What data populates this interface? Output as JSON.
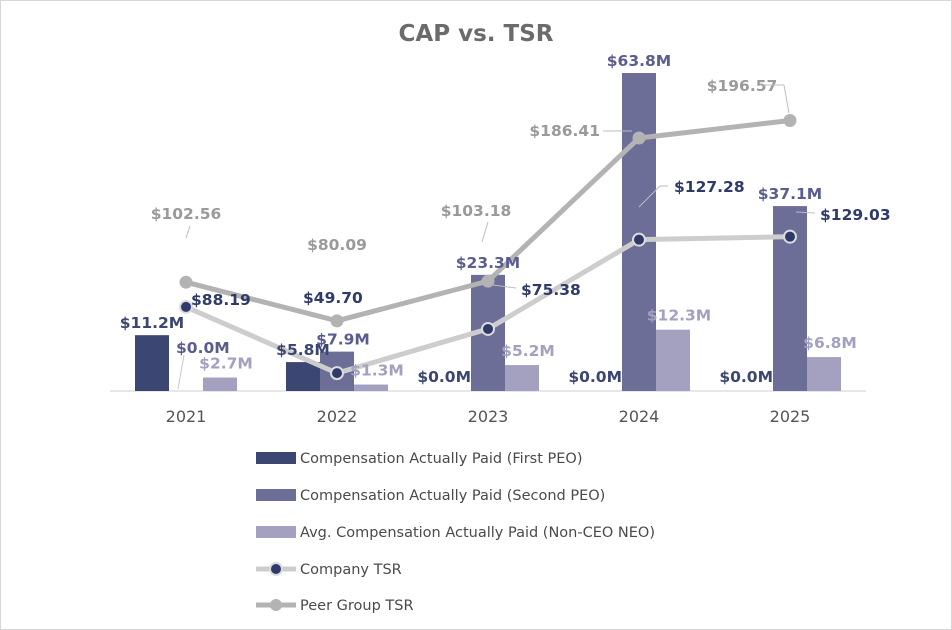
{
  "chart_data": {
    "type": "bar",
    "title": "CAP vs. TSR",
    "categories": [
      "2021",
      "2022",
      "2023",
      "2024",
      "2025"
    ],
    "series": [
      {
        "name": "Compensation Actually Paid (First PEO)",
        "kind": "bar",
        "color": "#3b4673",
        "values": [
          11.2,
          5.8,
          0.0,
          0.0,
          0.0
        ],
        "labels": [
          "$11.2M",
          "$5.8M",
          "$0.0M",
          "$0.0M",
          "$0.0M"
        ]
      },
      {
        "name": "Compensation Actually Paid (Second PEO)",
        "kind": "bar",
        "color": "#6c6e98",
        "values": [
          0.0,
          7.9,
          23.3,
          63.8,
          37.1
        ],
        "labels": [
          "$0.0M",
          "$7.9M",
          "$23.3M",
          "$63.8M",
          "$37.1M"
        ]
      },
      {
        "name": "Avg. Compensation Actually Paid (Non-CEO NEO)",
        "kind": "bar",
        "color": "#a3a1bf",
        "values": [
          2.7,
          1.3,
          5.2,
          12.3,
          6.8
        ],
        "labels": [
          "$2.7M",
          "$1.3M",
          "$5.2M",
          "$12.3M",
          "$6.8M"
        ]
      },
      {
        "name": "Company TSR",
        "kind": "line",
        "color": "#cdcdcd",
        "marker_color": "#2f3a6b",
        "values": [
          88.19,
          49.7,
          75.38,
          127.28,
          129.03
        ],
        "labels": [
          "$88.19",
          "$49.70",
          "$75.38",
          "$127.28",
          "$129.03"
        ]
      },
      {
        "name": "Peer Group TSR",
        "kind": "line",
        "color": "#b3b3b3",
        "marker_color": "#b3b3b3",
        "values": [
          102.56,
          80.09,
          103.18,
          186.41,
          196.57
        ],
        "labels": [
          "$102.56",
          "$80.09",
          "$103.18",
          "$186.41",
          "$196.57"
        ]
      }
    ],
    "legend_position": "bottom",
    "grid": false
  }
}
